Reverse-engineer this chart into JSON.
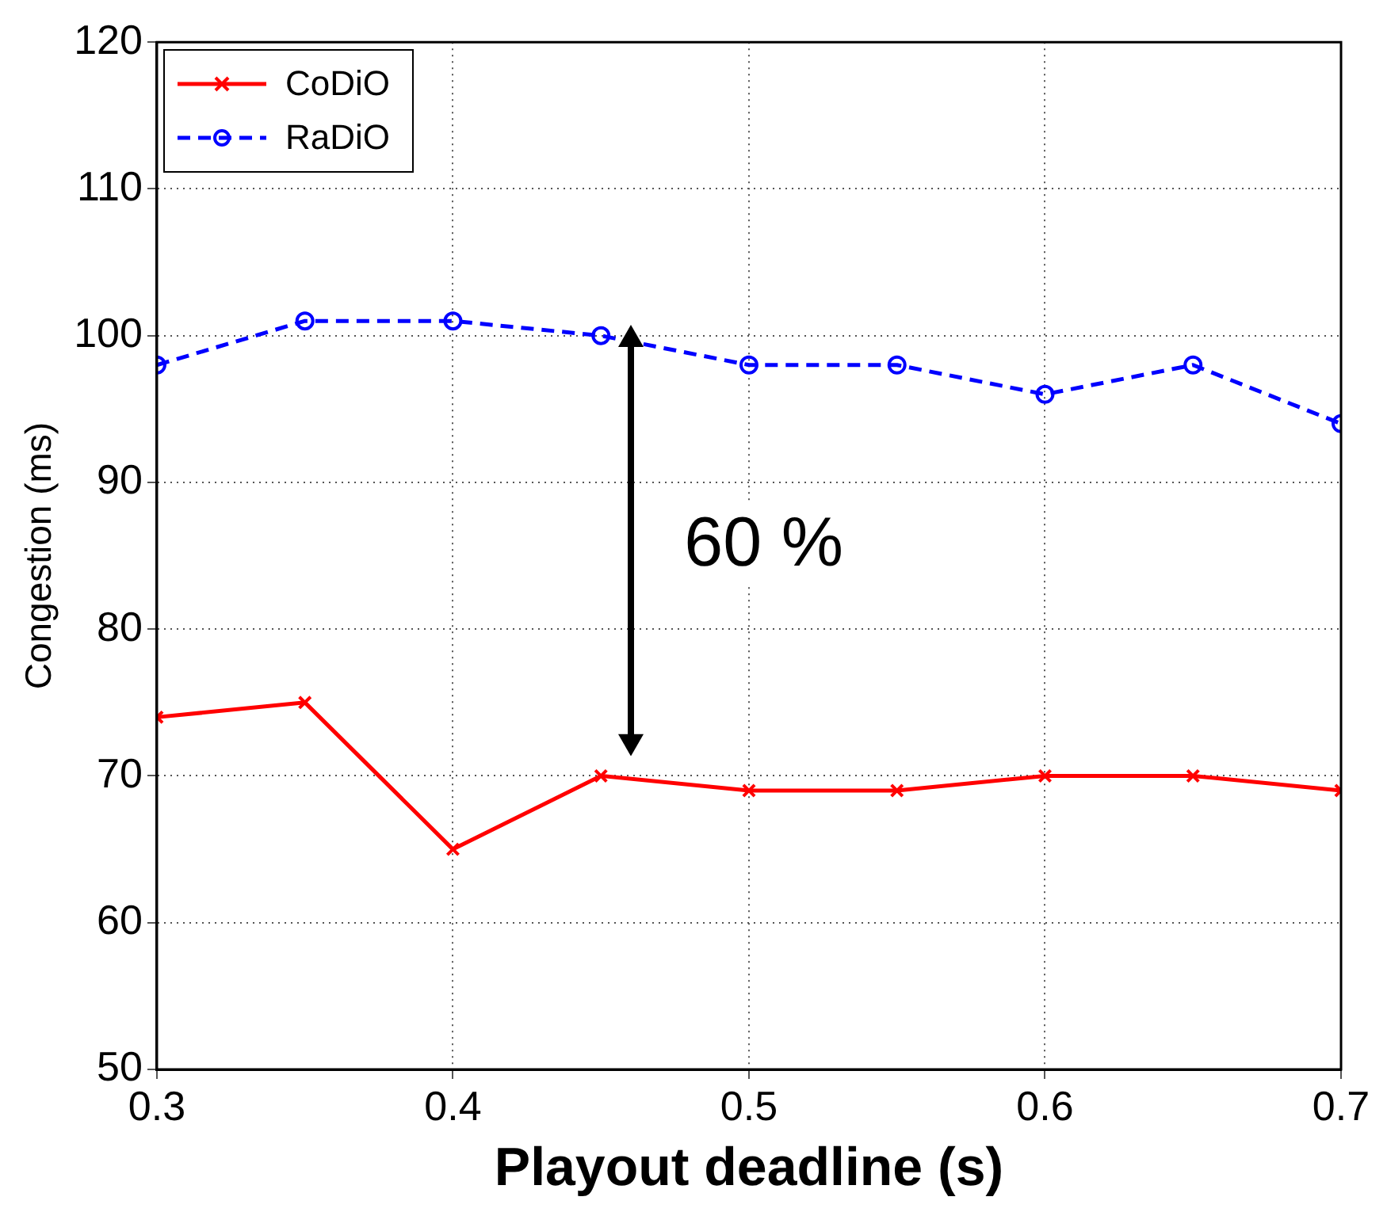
{
  "chart_data": {
    "type": "line",
    "xlabel": "Playout deadline (s)",
    "ylabel": "Congestion (ms)",
    "x": [
      0.3,
      0.35,
      0.4,
      0.45,
      0.5,
      0.55,
      0.6,
      0.65,
      0.7
    ],
    "series": [
      {
        "name": "CoDiO",
        "color": "#ff0000",
        "values": [
          74,
          75,
          65,
          70,
          69,
          69,
          70,
          70,
          69
        ],
        "marker": "cross",
        "line_style": "solid"
      },
      {
        "name": "RaDiO",
        "color": "#0000ff",
        "values": [
          98,
          101,
          101,
          100,
          98,
          98,
          96,
          98,
          94
        ],
        "marker": "circle",
        "line_style": "dashed"
      }
    ],
    "xlim": [
      0.3,
      0.7
    ],
    "xticks": [
      0.3,
      0.4,
      0.5,
      0.6,
      0.7
    ],
    "ylim": [
      50,
      120
    ],
    "yticks": [
      50,
      60,
      70,
      80,
      90,
      100,
      110,
      120
    ],
    "grid": true,
    "legend": "top left",
    "annotations": [
      "60 %"
    ]
  }
}
